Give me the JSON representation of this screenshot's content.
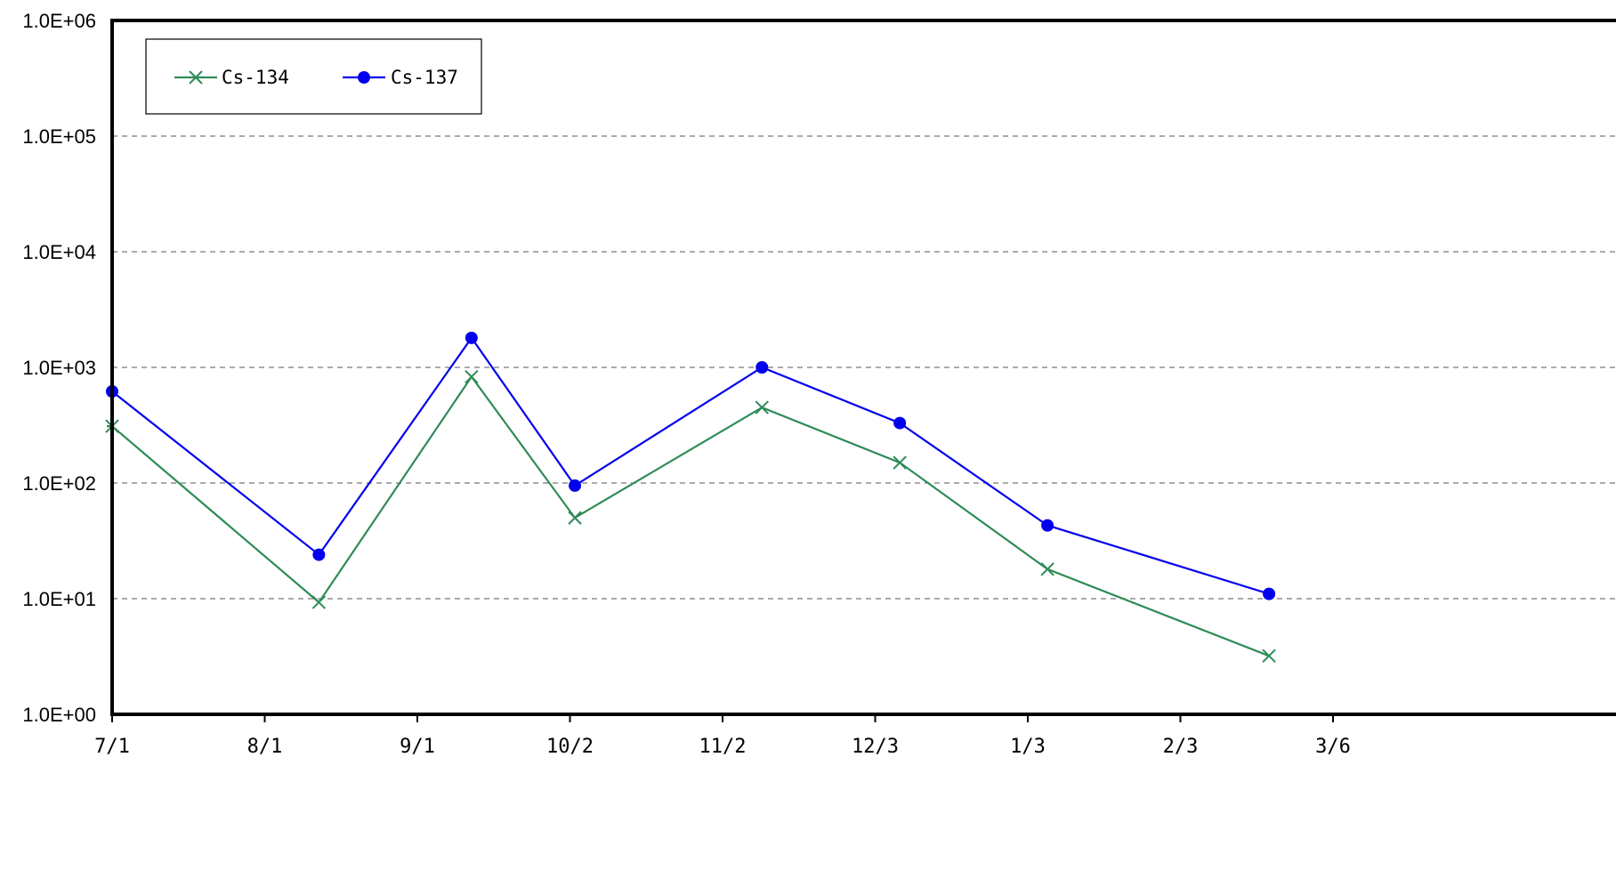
{
  "chart_data": {
    "type": "line",
    "title": "",
    "xlabel": "",
    "ylabel": "",
    "y_scale": "log",
    "ylim": [
      1,
      1000000
    ],
    "xlim": [
      "07-01",
      "03-06"
    ],
    "x_tick_labels": [
      "7/1",
      "8/1",
      "9/1",
      "10/2",
      "11/2",
      "12/3",
      "1/3",
      "2/3",
      "3/6"
    ],
    "y_tick_labels": [
      "1.0E+00",
      "1.0E+01",
      "1.0E+02",
      "1.0E+03",
      "1.0E+04",
      "1.0E+05",
      "1.0E+06"
    ],
    "grid": "horizontal dashed",
    "legend_position": "top-left",
    "x": [
      "07-01",
      "08-12",
      "09-12",
      "10-03",
      "11-10",
      "12-08",
      "01-07",
      "02-21"
    ],
    "series": [
      {
        "name": "Cs-134",
        "color": "#2e8b57",
        "marker": "x",
        "values": [
          310,
          9.3,
          830,
          50,
          450,
          150,
          18,
          3.2
        ]
      },
      {
        "name": "Cs-137",
        "color": "#0000ee",
        "marker": "circle",
        "values": [
          620,
          24,
          1800,
          95,
          1000,
          330,
          43,
          11
        ]
      }
    ]
  }
}
